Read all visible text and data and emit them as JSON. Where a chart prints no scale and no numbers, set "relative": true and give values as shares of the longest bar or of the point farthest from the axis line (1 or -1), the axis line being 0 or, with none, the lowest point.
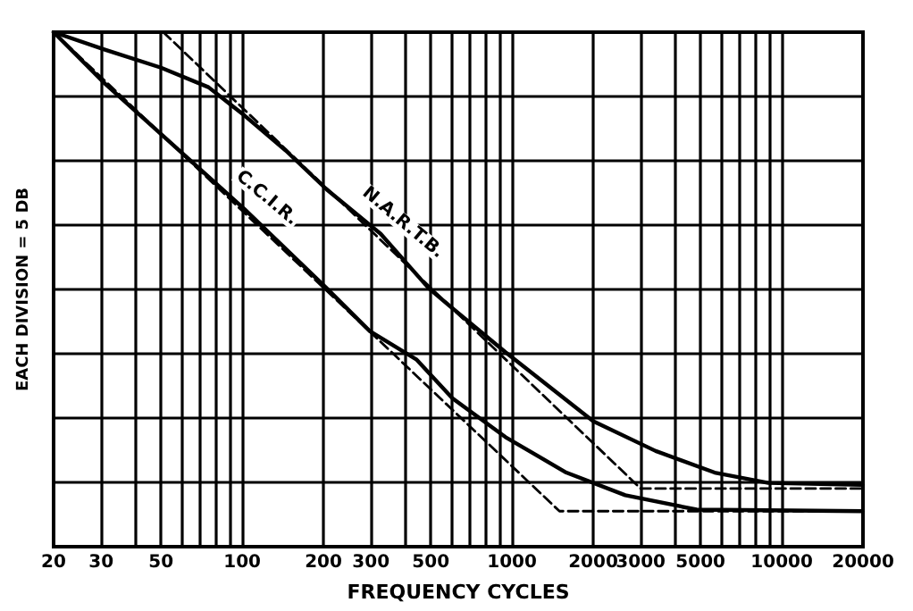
{
  "chart_data": {
    "type": "line",
    "xlabel": "FREQUENCY CYCLES",
    "ylabel": "EACH DIVISION = 5 DB",
    "relative": true,
    "log": "x",
    "grid": true,
    "legend": false,
    "marker": "none",
    "xlim": [
      20,
      20000
    ],
    "xticks": [
      20,
      30,
      {
        "value": 40,
        "label": null
      },
      50,
      {
        "value": 60,
        "label": null
      },
      {
        "value": 70,
        "label": null
      },
      {
        "value": 80,
        "label": null
      },
      {
        "value": 90,
        "label": null
      },
      100,
      200,
      300,
      {
        "value": 400,
        "label": null
      },
      500,
      {
        "value": 600,
        "label": null
      },
      {
        "value": 700,
        "label": null
      },
      {
        "value": 800,
        "label": null
      },
      {
        "value": 900,
        "label": null
      },
      1000,
      2000,
      3000,
      {
        "value": 4000,
        "label": null
      },
      5000,
      {
        "value": 6000,
        "label": null
      },
      {
        "value": 7000,
        "label": null
      },
      {
        "value": 8000,
        "label": null
      },
      {
        "value": 9000,
        "label": null
      },
      10000,
      20000
    ],
    "series": [
      {
        "name": "N.A.R.T.B.",
        "color": "#000000",
        "line_style": "solid",
        "x": [
          20,
          31,
          50,
          75,
          102,
          145,
          206,
          326,
          492,
          600,
          946,
          2000,
          3410,
          5640,
          8920,
          20000
        ],
        "values": [
          1.0,
          0.966,
          0.931,
          0.893,
          0.838,
          0.77,
          0.694,
          0.608,
          0.502,
          0.464,
          0.378,
          0.244,
          0.186,
          0.144,
          0.124,
          0.12
        ]
      },
      {
        "name": "C.C.I.R.",
        "color": "#000000",
        "line_style": "solid",
        "x": [
          20,
          31,
          102,
          206,
          297,
          442,
          600,
          946,
          1590,
          2630,
          4840,
          20000
        ],
        "values": [
          1.0,
          0.9,
          0.656,
          0.502,
          0.419,
          0.364,
          0.289,
          0.213,
          0.144,
          0.1,
          0.072,
          0.069
        ]
      },
      {
        "color": "#000000",
        "line_style": "dashed",
        "x": [
          51,
          3000,
          20000
        ],
        "values": [
          1.0,
          0.113,
          0.113
        ]
      },
      {
        "color": "#000000",
        "line_style": "dashed",
        "x": [
          20,
          1500,
          20000
        ],
        "values": [
          1.0,
          0.069,
          0.069
        ]
      }
    ]
  }
}
